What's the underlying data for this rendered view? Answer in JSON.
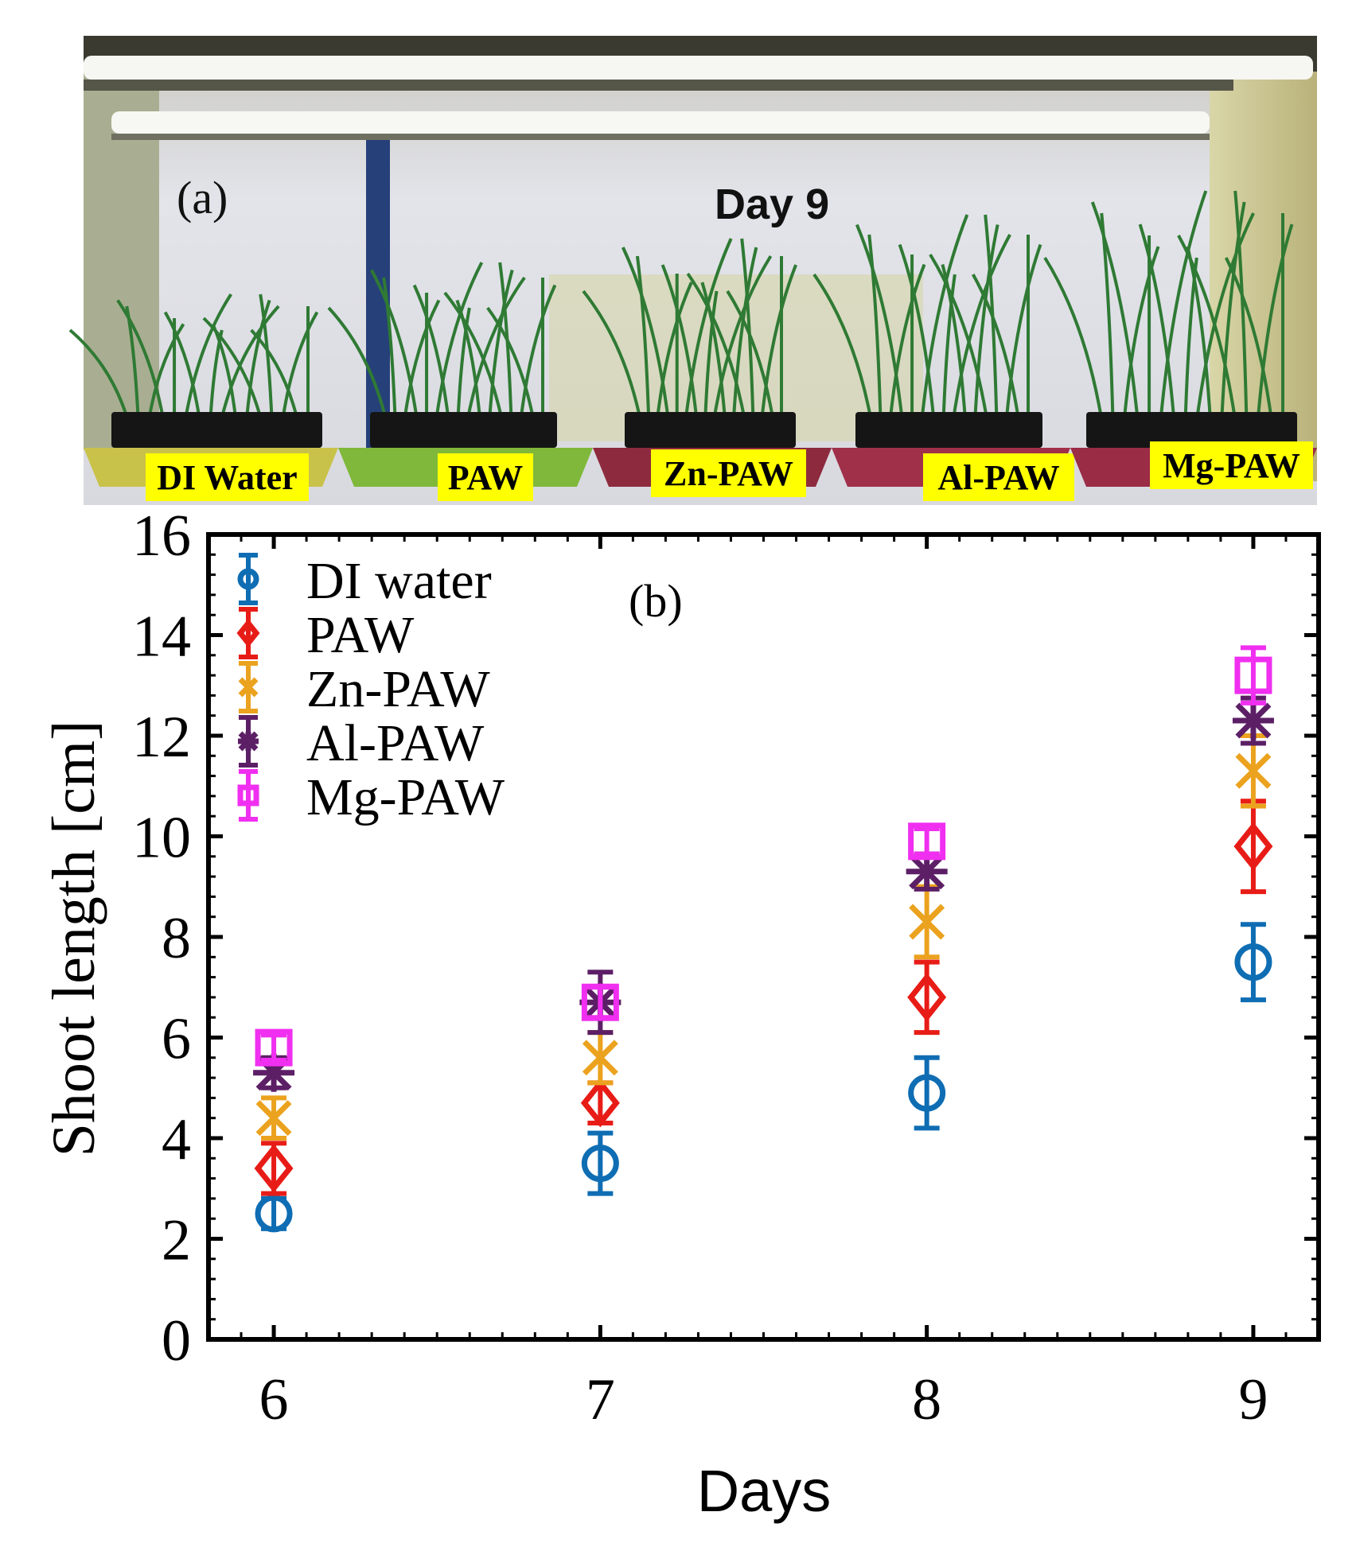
{
  "photo": {
    "panel_label": "(a)",
    "day_label": "Day 9",
    "trays": [
      {
        "label": "DI Water",
        "tray_color": "#c9c24a"
      },
      {
        "label": "PAW",
        "tray_color": "#7fb83a"
      },
      {
        "label": "Zn-PAW",
        "tray_color": "#8e2a3e"
      },
      {
        "label": "Al-PAW",
        "tray_color": "#a0304a"
      },
      {
        "label": "Mg-PAW",
        "tray_color": "#9a2c46"
      }
    ],
    "label_bg": "#ffff00",
    "wall_color": "#dcdde3",
    "plant_color": "#2f7a34"
  },
  "chart_data": {
    "type": "scatter",
    "panel_label": "(b)",
    "xlabel": "Days",
    "ylabel": "Shoot length [cm]",
    "x": [
      6,
      7,
      8,
      9
    ],
    "xlim": [
      5.8,
      9.2
    ],
    "ylim": [
      0,
      16
    ],
    "xticks": [
      "6",
      "7",
      "8",
      "9"
    ],
    "yticks": [
      "0",
      "2",
      "4",
      "6",
      "8",
      "10",
      "12",
      "14",
      "16"
    ],
    "legend_position": "top-left",
    "series": [
      {
        "name": "DI water",
        "color": "#0f6db3",
        "marker": "circle",
        "values": [
          2.5,
          3.5,
          4.9,
          7.5
        ],
        "errors": [
          0.3,
          0.6,
          0.7,
          0.75
        ]
      },
      {
        "name": "PAW",
        "color": "#e81c17",
        "marker": "diamond",
        "values": [
          3.4,
          4.7,
          6.8,
          9.8
        ],
        "errors": [
          0.5,
          0.4,
          0.7,
          0.9
        ]
      },
      {
        "name": "Zn-PAW",
        "color": "#eba21e",
        "marker": "x",
        "values": [
          4.4,
          5.6,
          8.3,
          11.3
        ],
        "errors": [
          0.4,
          0.5,
          0.7,
          0.7
        ]
      },
      {
        "name": "Al-PAW",
        "color": "#5c1f66",
        "marker": "asterisk",
        "values": [
          5.3,
          6.7,
          9.3,
          12.3
        ],
        "errors": [
          0.3,
          0.6,
          0.35,
          0.45
        ]
      },
      {
        "name": "Mg-PAW",
        "color": "#f02ff0",
        "marker": "square",
        "values": [
          5.8,
          6.7,
          9.9,
          13.2
        ],
        "errors": [
          0.25,
          0.3,
          0.25,
          0.55
        ]
      }
    ]
  }
}
